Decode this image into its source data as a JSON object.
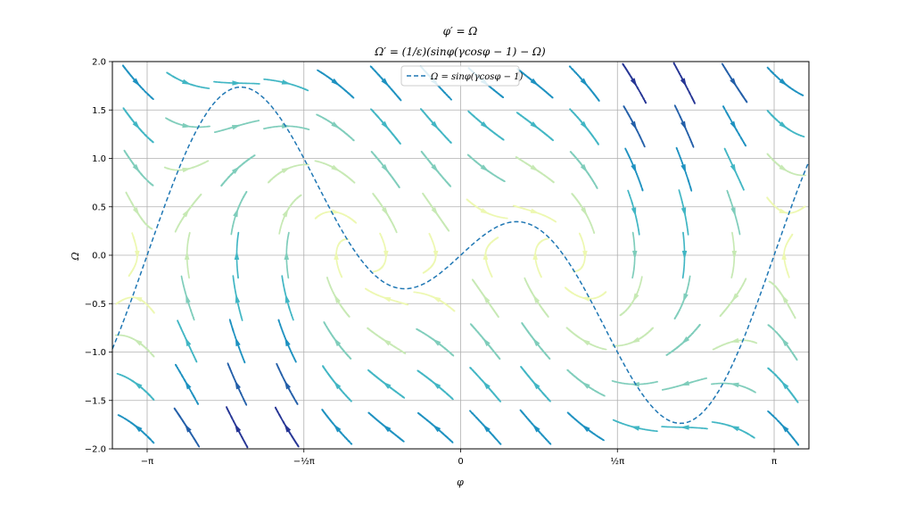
{
  "chart_data": {
    "type": "line",
    "title_line1": "φ′ = Ω",
    "title_line2": "Ω′ = (1/ε)(sinφ(γcosφ − 1) − Ω)",
    "xlabel": "φ",
    "ylabel": "Ω",
    "xlim": [
      -3.49,
      3.49
    ],
    "ylim": [
      -2.0,
      2.0
    ],
    "x_ticks": [
      {
        "value": -3.14159,
        "label": "−π"
      },
      {
        "value": -1.5708,
        "label": "−½π"
      },
      {
        "value": 0,
        "label": "0"
      },
      {
        "value": 1.5708,
        "label": "½π"
      },
      {
        "value": 3.14159,
        "label": "π"
      }
    ],
    "y_ticks": [
      {
        "value": -2.0,
        "label": "−2.0"
      },
      {
        "value": -1.5,
        "label": "−1.5"
      },
      {
        "value": -1.0,
        "label": "−1.0"
      },
      {
        "value": -0.5,
        "label": "−0.5"
      },
      {
        "value": 0.0,
        "label": "0.0"
      },
      {
        "value": 0.5,
        "label": "0.5"
      },
      {
        "value": 1.0,
        "label": "1.0"
      },
      {
        "value": 1.5,
        "label": "1.5"
      },
      {
        "value": 2.0,
        "label": "2.0"
      }
    ],
    "grid": true,
    "legend_position": "top-center",
    "series": [
      {
        "name": "Ω = sinφ(γcosφ − 1)",
        "style": "dashed",
        "color": "#1f77b4",
        "gamma": 1.95
      }
    ],
    "streamplot": {
      "epsilon": 1.0,
      "colormap": "YlGnBu",
      "colors": [
        "#ffffd9",
        "#edf8b1",
        "#c7e9b4",
        "#7fcdbb",
        "#41b6c4",
        "#1d91c0",
        "#225ea8",
        "#253494",
        "#081d58"
      ]
    }
  }
}
